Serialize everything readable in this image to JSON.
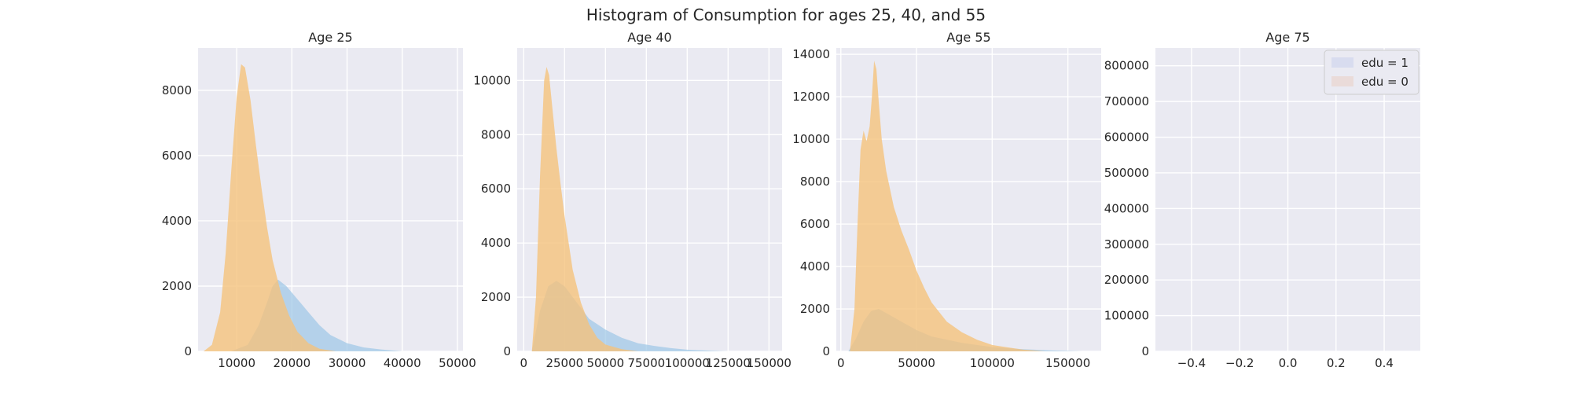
{
  "figure": {
    "title": "Histogram of Consumption for ages 25, 40, and 55"
  },
  "colors": {
    "panel_bg": "#eaeaf2",
    "grid": "#ffffff",
    "edu0_fill": "#f5c27a",
    "edu1_fill": "#9fc8e6",
    "edu1_legend": "#d8dcef",
    "edu0_legend": "#eadbd9"
  },
  "legend": {
    "placement": "top-right of the last panel",
    "entries": [
      "edu = 1",
      "edu = 0"
    ]
  },
  "chart_data": [
    {
      "type": "histogram",
      "title": "Age 25",
      "xlim": [
        3000,
        51000
      ],
      "ylim": [
        0,
        9300
      ],
      "xticks": [
        10000,
        20000,
        30000,
        40000,
        50000
      ],
      "yticks": [
        0,
        2000,
        4000,
        6000,
        8000
      ],
      "series": [
        {
          "name": "edu = 1",
          "x": [
            9000,
            12000,
            14000,
            15500,
            16500,
            17500,
            19000,
            21000,
            23000,
            25000,
            27000,
            30000,
            33000,
            36000,
            40000
          ],
          "y": [
            0,
            200,
            800,
            1500,
            2000,
            2200,
            2000,
            1600,
            1200,
            800,
            500,
            250,
            120,
            60,
            0
          ]
        },
        {
          "name": "edu = 0",
          "x": [
            4000,
            5500,
            7000,
            8000,
            9000,
            10000,
            10800,
            11500,
            12500,
            13500,
            14500,
            15500,
            16500,
            18000,
            19500,
            21000,
            23000,
            25000,
            28000
          ],
          "y": [
            0,
            200,
            1200,
            3000,
            5500,
            7800,
            8800,
            8700,
            7700,
            6300,
            5000,
            3800,
            2800,
            1800,
            1100,
            600,
            250,
            80,
            0
          ]
        }
      ]
    },
    {
      "type": "histogram",
      "title": "Age 40",
      "xlim": [
        -4000,
        158000
      ],
      "ylim": [
        0,
        11200
      ],
      "xticks": [
        0,
        25000,
        50000,
        75000,
        100000,
        125000,
        150000
      ],
      "yticks": [
        0,
        2000,
        4000,
        6000,
        8000,
        10000
      ],
      "series": [
        {
          "name": "edu = 1",
          "x": [
            5000,
            10000,
            15000,
            20000,
            25000,
            30000,
            35000,
            40000,
            50000,
            60000,
            70000,
            80000,
            90000,
            100000,
            115000,
            125000
          ],
          "y": [
            0,
            1500,
            2400,
            2600,
            2400,
            2000,
            1600,
            1200,
            800,
            500,
            300,
            200,
            120,
            60,
            20,
            0
          ]
        },
        {
          "name": "edu = 0",
          "x": [
            5000,
            7500,
            10000,
            12500,
            14000,
            15500,
            17500,
            20000,
            22500,
            25000,
            27500,
            30000,
            35000,
            40000,
            45000,
            50000,
            60000,
            70000
          ],
          "y": [
            0,
            2000,
            6500,
            10000,
            10500,
            10200,
            9000,
            7500,
            6200,
            5000,
            4000,
            3000,
            1800,
            1000,
            500,
            250,
            80,
            0
          ]
        }
      ]
    },
    {
      "type": "histogram",
      "title": "Age 55",
      "xlim": [
        -3000,
        172000
      ],
      "ylim": [
        0,
        14300
      ],
      "xticks": [
        0,
        50000,
        100000,
        150000
      ],
      "yticks": [
        0,
        2000,
        4000,
        6000,
        8000,
        10000,
        12000,
        14000
      ],
      "series": [
        {
          "name": "edu = 1",
          "x": [
            5000,
            10000,
            15000,
            20000,
            25000,
            30000,
            40000,
            50000,
            60000,
            80000,
            100000,
            120000,
            140000,
            160000
          ],
          "y": [
            0,
            600,
            1400,
            1900,
            2000,
            1800,
            1400,
            1000,
            700,
            400,
            200,
            100,
            40,
            0
          ]
        },
        {
          "name": "edu = 0",
          "x": [
            6000,
            9000,
            11000,
            13000,
            15000,
            17000,
            19000,
            20500,
            22000,
            23500,
            25000,
            27000,
            30000,
            35000,
            40000,
            45000,
            50000,
            55000,
            60000,
            70000,
            80000,
            90000,
            100000,
            120000,
            135000
          ],
          "y": [
            0,
            2000,
            6000,
            9500,
            10400,
            9900,
            10600,
            12000,
            13700,
            13300,
            11800,
            10000,
            8500,
            6800,
            5700,
            4800,
            3800,
            3000,
            2300,
            1400,
            900,
            550,
            300,
            80,
            0
          ]
        }
      ]
    },
    {
      "type": "histogram",
      "title": "Age 75",
      "xlim": [
        -0.55,
        0.55
      ],
      "ylim": [
        0,
        850000
      ],
      "xticks": [
        -0.4,
        -0.2,
        0.0,
        0.2,
        0.4
      ],
      "yticks": [
        0,
        100000,
        200000,
        300000,
        400000,
        500000,
        600000,
        700000,
        800000
      ],
      "series": []
    }
  ]
}
